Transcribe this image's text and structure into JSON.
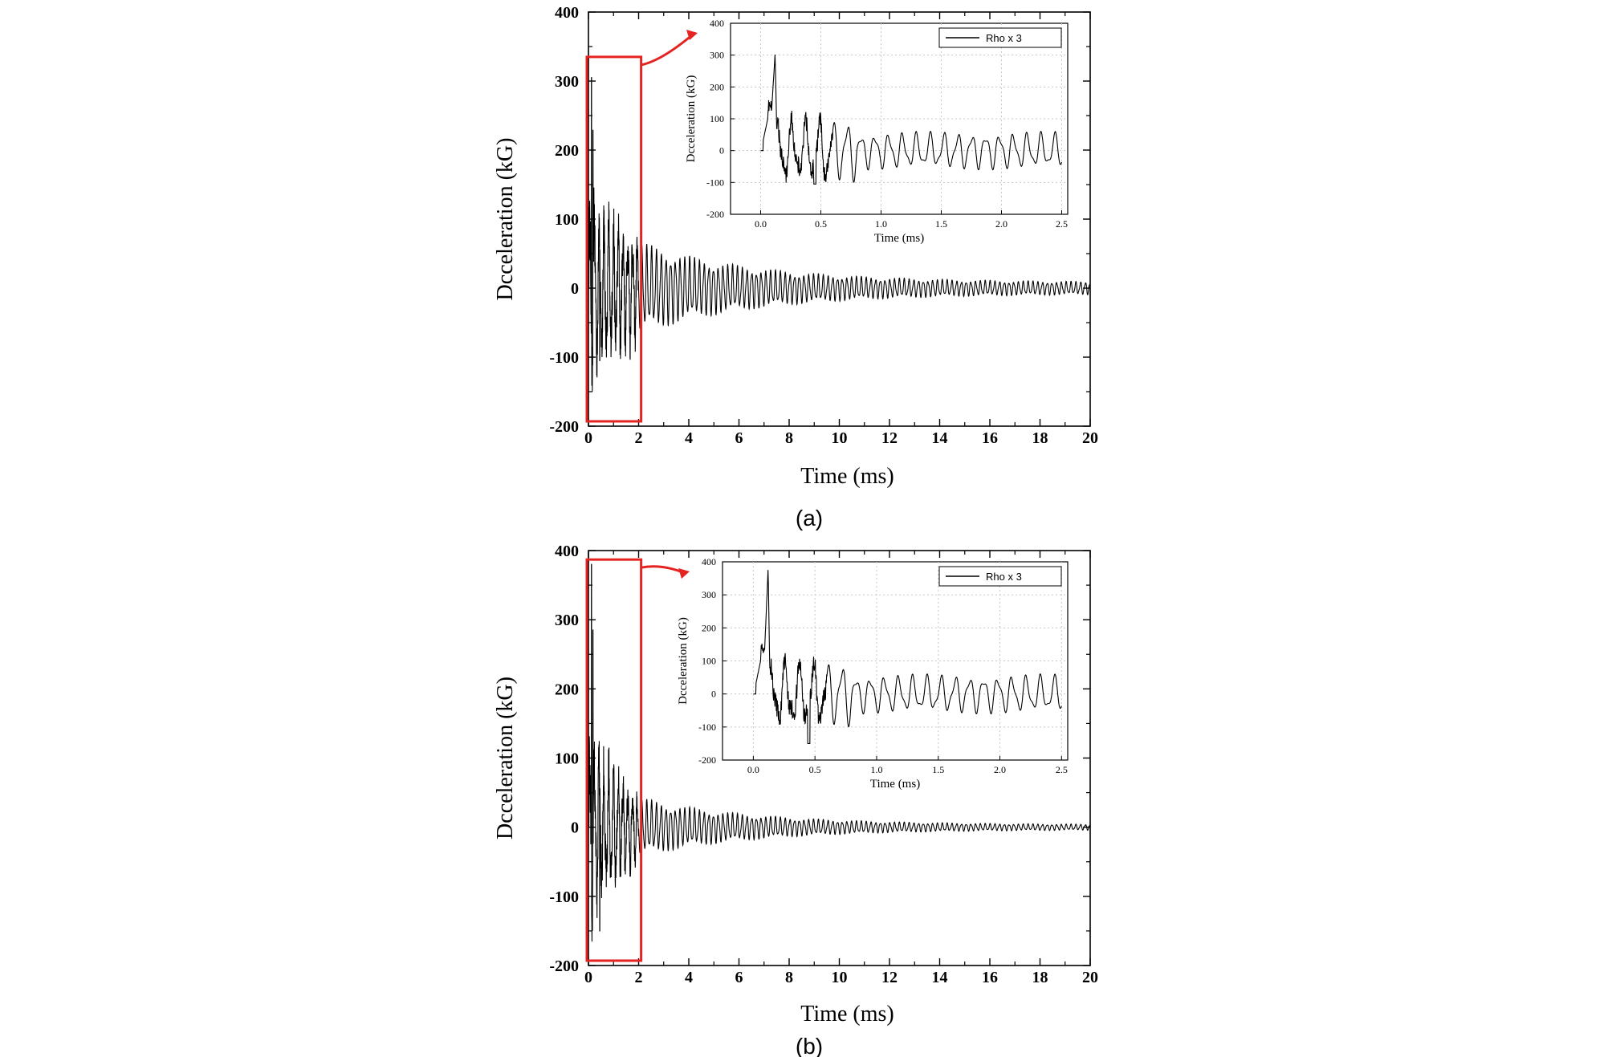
{
  "panels": [
    {
      "label": "(a)",
      "main_chart": {
        "type": "line",
        "xlabel": "Time (ms)",
        "ylabel": "Dcceleration (kG)",
        "xlim": [
          0,
          20
        ],
        "ylim": [
          -200,
          400
        ],
        "xticks": [
          "0",
          "2",
          "4",
          "6",
          "8",
          "10",
          "12",
          "14",
          "16",
          "18",
          "20"
        ],
        "yticks": [
          "-200",
          "-100",
          "0",
          "100",
          "200",
          "300",
          "400"
        ],
        "zoom_box": {
          "x_range": [
            0,
            2.1
          ],
          "y_range": [
            -193,
            335
          ]
        },
        "signal": {
          "peak": 305,
          "peak_time": 0.12,
          "early_amp": 95,
          "mid_amp": 55,
          "end_amp": 7,
          "period": 0.19
        }
      },
      "inset_chart": {
        "type": "line",
        "xlabel": "Time (ms)",
        "ylabel": "Dcceleration (kG)",
        "legend": "Rho x 3",
        "legend_position": "top-right",
        "xlim": [
          -0.25,
          2.55
        ],
        "ylim": [
          -200,
          400
        ],
        "xticks": [
          "0.0",
          "0.5",
          "1.0",
          "1.5",
          "2.0",
          "2.5"
        ],
        "yticks": [
          "-200",
          "-100",
          "0",
          "100",
          "200",
          "300",
          "400"
        ],
        "grid": true,
        "peak": 305,
        "min": -105
      }
    },
    {
      "label": "(b)",
      "main_chart": {
        "type": "line",
        "xlabel": "Time (ms)",
        "ylabel": "Dcceleration (kG)",
        "xlim": [
          0,
          20
        ],
        "ylim": [
          -200,
          400
        ],
        "xticks": [
          "0",
          "2",
          "4",
          "6",
          "8",
          "10",
          "12",
          "14",
          "16",
          "18",
          "20"
        ],
        "yticks": [
          "-200",
          "-100",
          "0",
          "100",
          "200",
          "300",
          "400"
        ],
        "zoom_box": {
          "x_range": [
            0,
            2.1
          ],
          "y_range": [
            -193,
            387
          ]
        },
        "signal": {
          "peak": 380,
          "peak_time": 0.12,
          "early_amp": 90,
          "mid_amp": 35,
          "end_amp": 3,
          "period": 0.19
        }
      },
      "inset_chart": {
        "type": "line",
        "xlabel": "Time (ms)",
        "ylabel": "Dcceleration (kG)",
        "legend": "Rho x 3",
        "legend_position": "top-right",
        "xlim": [
          -0.25,
          2.55
        ],
        "ylim": [
          -200,
          400
        ],
        "xticks": [
          "0.0",
          "0.5",
          "1.0",
          "1.5",
          "2.0",
          "2.5"
        ],
        "yticks": [
          "-200",
          "-100",
          "0",
          "100",
          "200",
          "300",
          "400"
        ],
        "grid": true,
        "peak": 380,
        "min": -150
      }
    }
  ],
  "colors": {
    "line": "#000000",
    "highlight": "#e52421",
    "grid": "#c8c8c8"
  },
  "chart_data": [
    {
      "type": "line",
      "title": "",
      "xlabel": "Time (ms)",
      "ylabel": "Dcceleration (kG)",
      "xlim": [
        0,
        20
      ],
      "ylim": [
        -200,
        400
      ],
      "series": [
        {
          "name": "Rho x 3",
          "x": [
            0,
            0.12,
            0.25,
            0.5,
            1.0,
            2.0,
            4.0,
            6.0,
            8.0,
            10.0,
            12.0,
            14.0,
            16.0,
            18.0,
            20.0
          ],
          "y_envelope": [
            0,
            305,
            150,
            100,
            95,
            60,
            45,
            35,
            27,
            20,
            15,
            12,
            10,
            8,
            7
          ]
        }
      ]
    },
    {
      "type": "line",
      "title": "",
      "xlabel": "Time (ms)",
      "ylabel": "Dcceleration (kG)",
      "xlim": [
        0,
        20
      ],
      "ylim": [
        -200,
        400
      ],
      "series": [
        {
          "name": "Rho x 3",
          "x": [
            0,
            0.12,
            0.25,
            0.5,
            1.0,
            2.0,
            4.0,
            6.0,
            8.0,
            10.0,
            12.0,
            14.0,
            16.0,
            18.0,
            20.0
          ],
          "y_envelope": [
            0,
            380,
            150,
            100,
            80,
            40,
            25,
            18,
            12,
            9,
            7,
            5,
            4,
            3,
            3
          ]
        }
      ]
    }
  ]
}
